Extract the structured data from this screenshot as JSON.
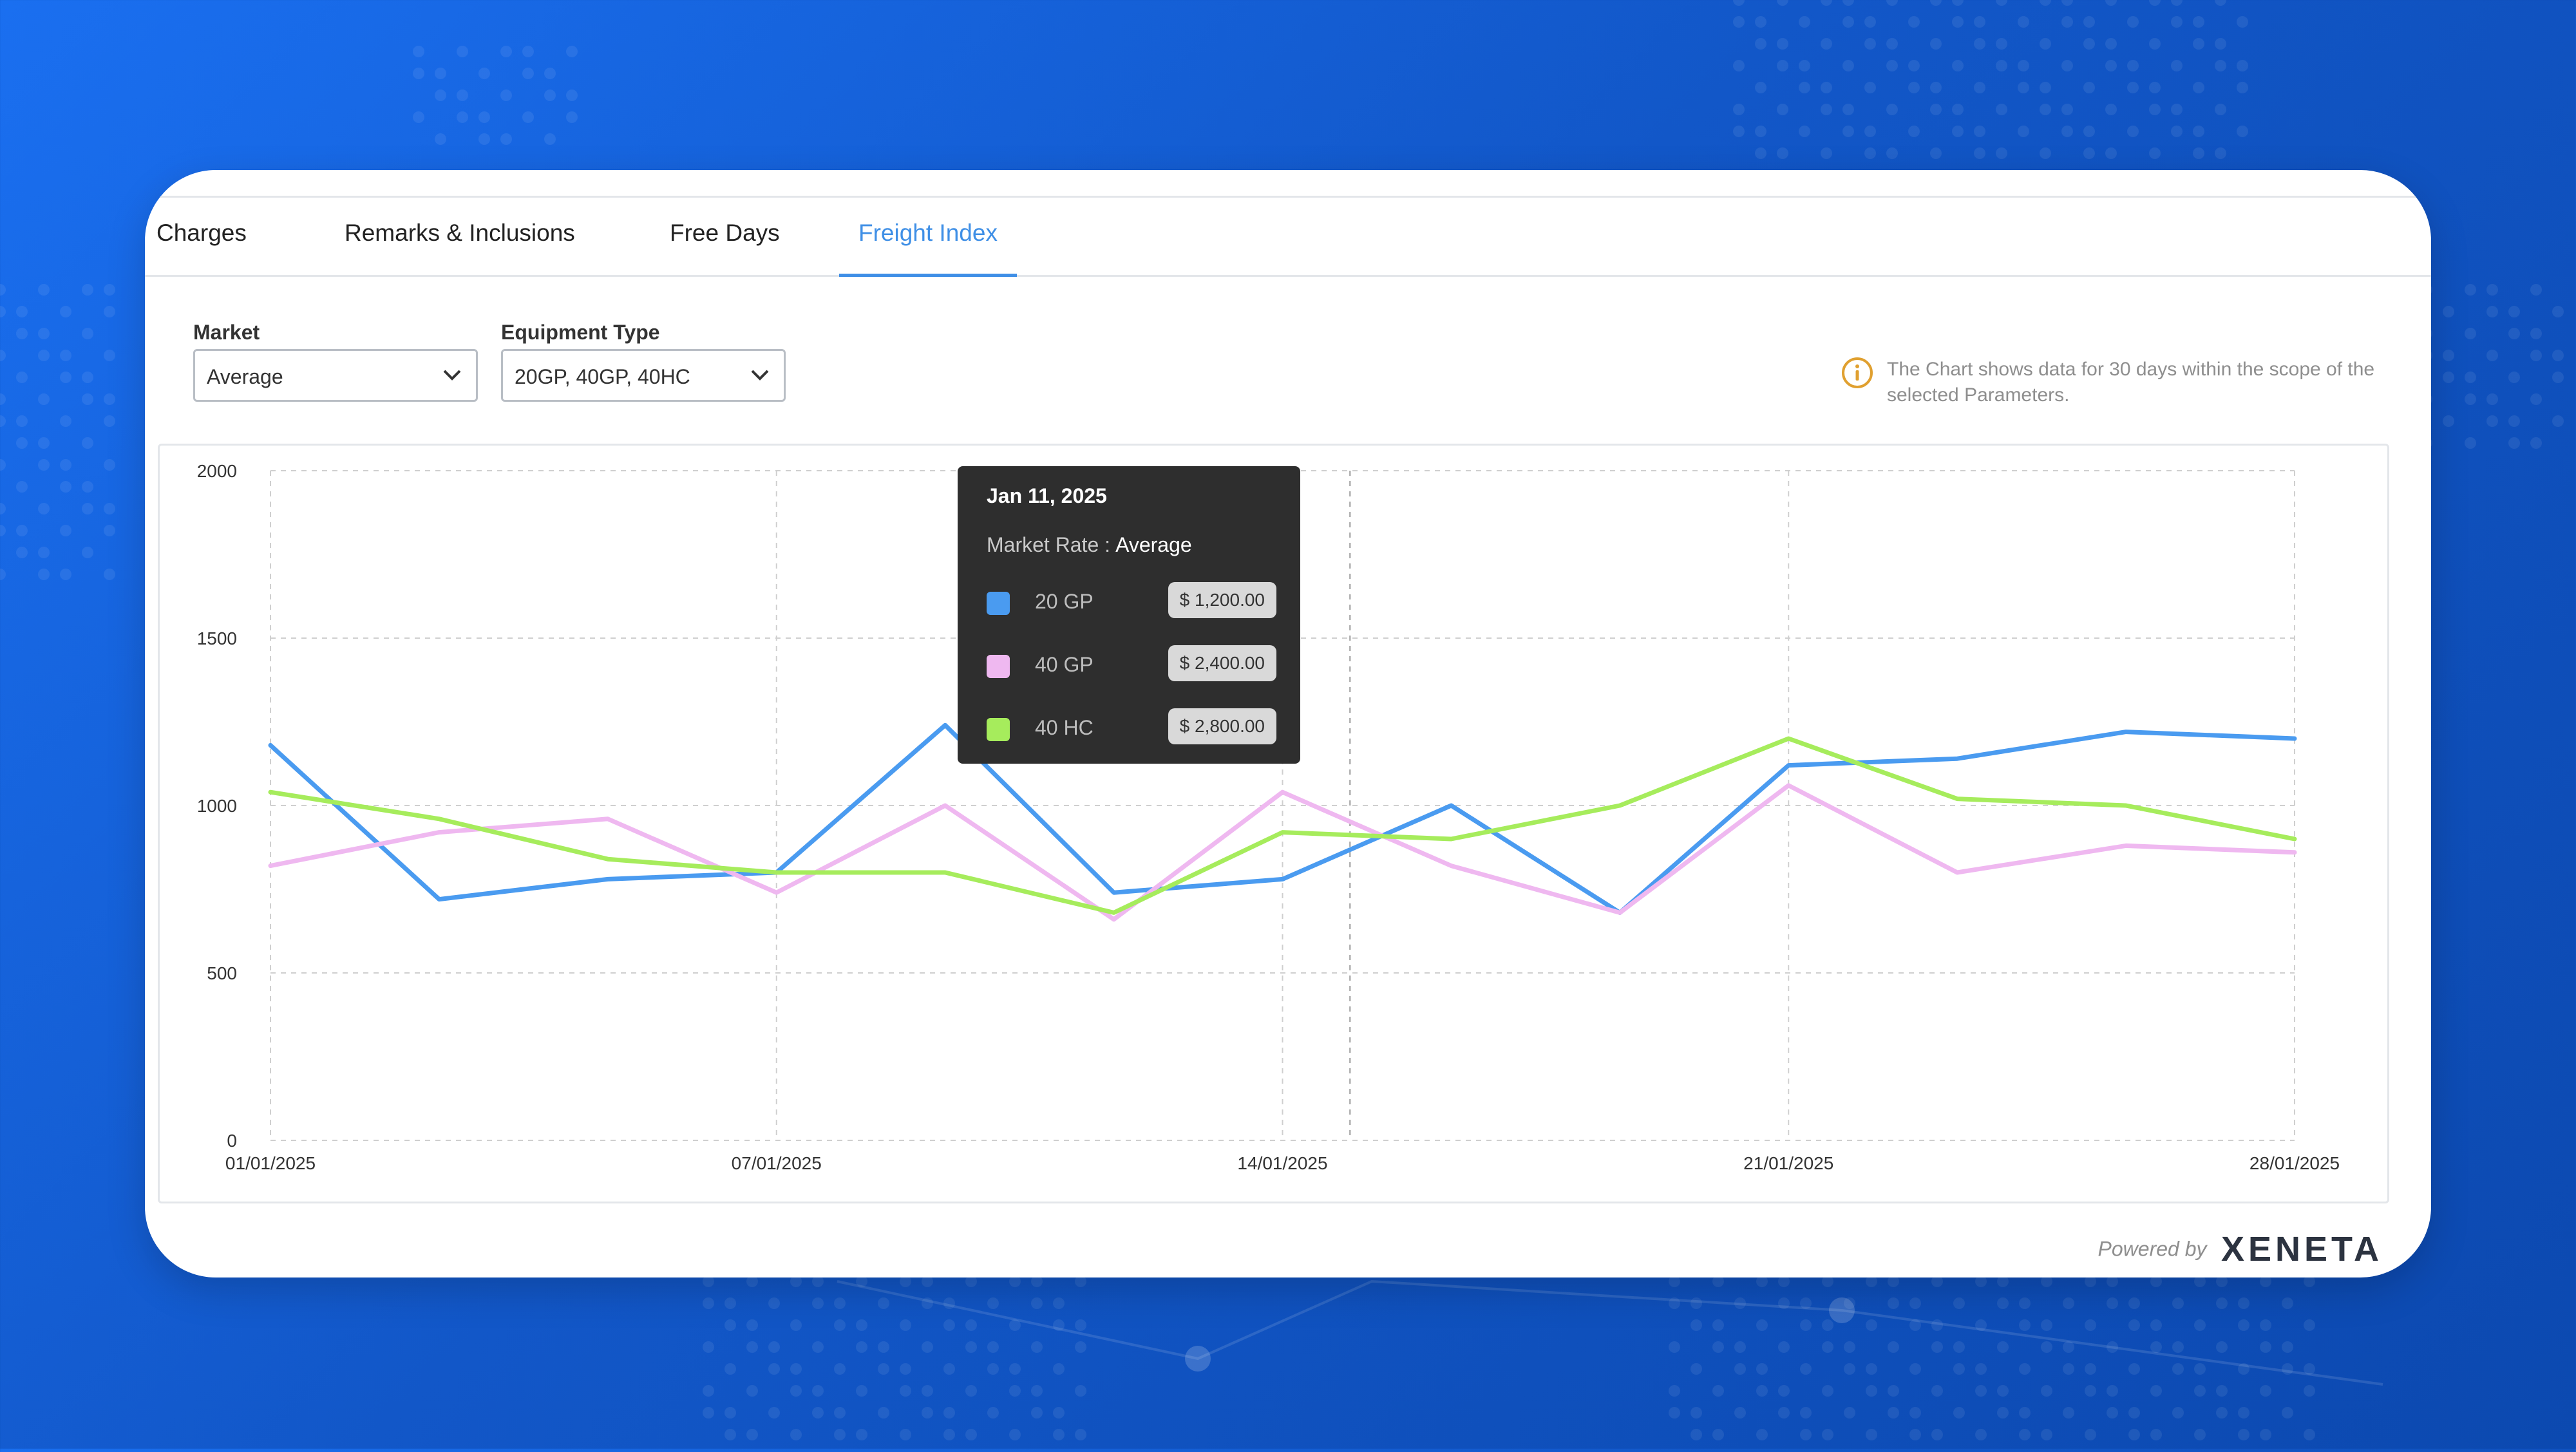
{
  "colors": {
    "accent": "#3f8fe6",
    "info": "#e0a030",
    "series_20gp": "#4a9bf0",
    "series_40gp": "#efb8f0",
    "series_40hc": "#a6ec5c"
  },
  "tabs": [
    {
      "label": "Charges",
      "active": false
    },
    {
      "label": "Remarks & Inclusions",
      "active": false
    },
    {
      "label": "Free Days",
      "active": false
    },
    {
      "label": "Freight Index",
      "active": true
    }
  ],
  "filters": {
    "market": {
      "label": "Market",
      "value": "Average"
    },
    "equipment": {
      "label": "Equipment Type",
      "value": "20GP, 40GP, 40HC"
    }
  },
  "info": {
    "icon": "info-circle-icon",
    "text": "The Chart shows data for 30 days within the scope of the selected Parameters."
  },
  "tooltip": {
    "date": "Jan 11, 2025",
    "market_rate_label": "Market Rate :",
    "market_rate_value": "Average",
    "rows": [
      {
        "name": "20 GP",
        "price": "$ 1,200.00"
      },
      {
        "name": "40 GP",
        "price": "$ 2,400.00"
      },
      {
        "name": "40 HC",
        "price": "$ 2,800.00"
      }
    ]
  },
  "footer": {
    "powered_by": "Powered by",
    "brand": "XENETA"
  },
  "chart_data": {
    "type": "line",
    "x": [
      1,
      4,
      7,
      10,
      13,
      16,
      19,
      22,
      25,
      28,
      31,
      34,
      37
    ],
    "x_ticks": [
      {
        "x": 1,
        "label": "01/01/2025"
      },
      {
        "x": 10,
        "label": "07/01/2025"
      },
      {
        "x": 19,
        "label": "14/01/2025"
      },
      {
        "x": 28,
        "label": "21/01/2025"
      },
      {
        "x": 37,
        "label": "28/01/2025"
      }
    ],
    "y_ticks": [
      0,
      500,
      1000,
      1500,
      2000
    ],
    "ylim": [
      0,
      2000
    ],
    "xlim": [
      1,
      37
    ],
    "grid": true,
    "hover_x": 20.2,
    "series": [
      {
        "name": "20 GP",
        "color": "#4a9bf0",
        "values": [
          1180,
          720,
          780,
          800,
          1240,
          740,
          780,
          1000,
          680,
          1120,
          1140,
          1220,
          1200
        ]
      },
      {
        "name": "40 GP",
        "color": "#efb8f0",
        "values": [
          820,
          920,
          960,
          740,
          1000,
          660,
          1040,
          820,
          680,
          1060,
          800,
          880,
          860
        ]
      },
      {
        "name": "40 HC",
        "color": "#a6ec5c",
        "values": [
          1040,
          960,
          840,
          800,
          800,
          680,
          920,
          900,
          1000,
          1200,
          1020,
          1000,
          900
        ]
      }
    ]
  }
}
